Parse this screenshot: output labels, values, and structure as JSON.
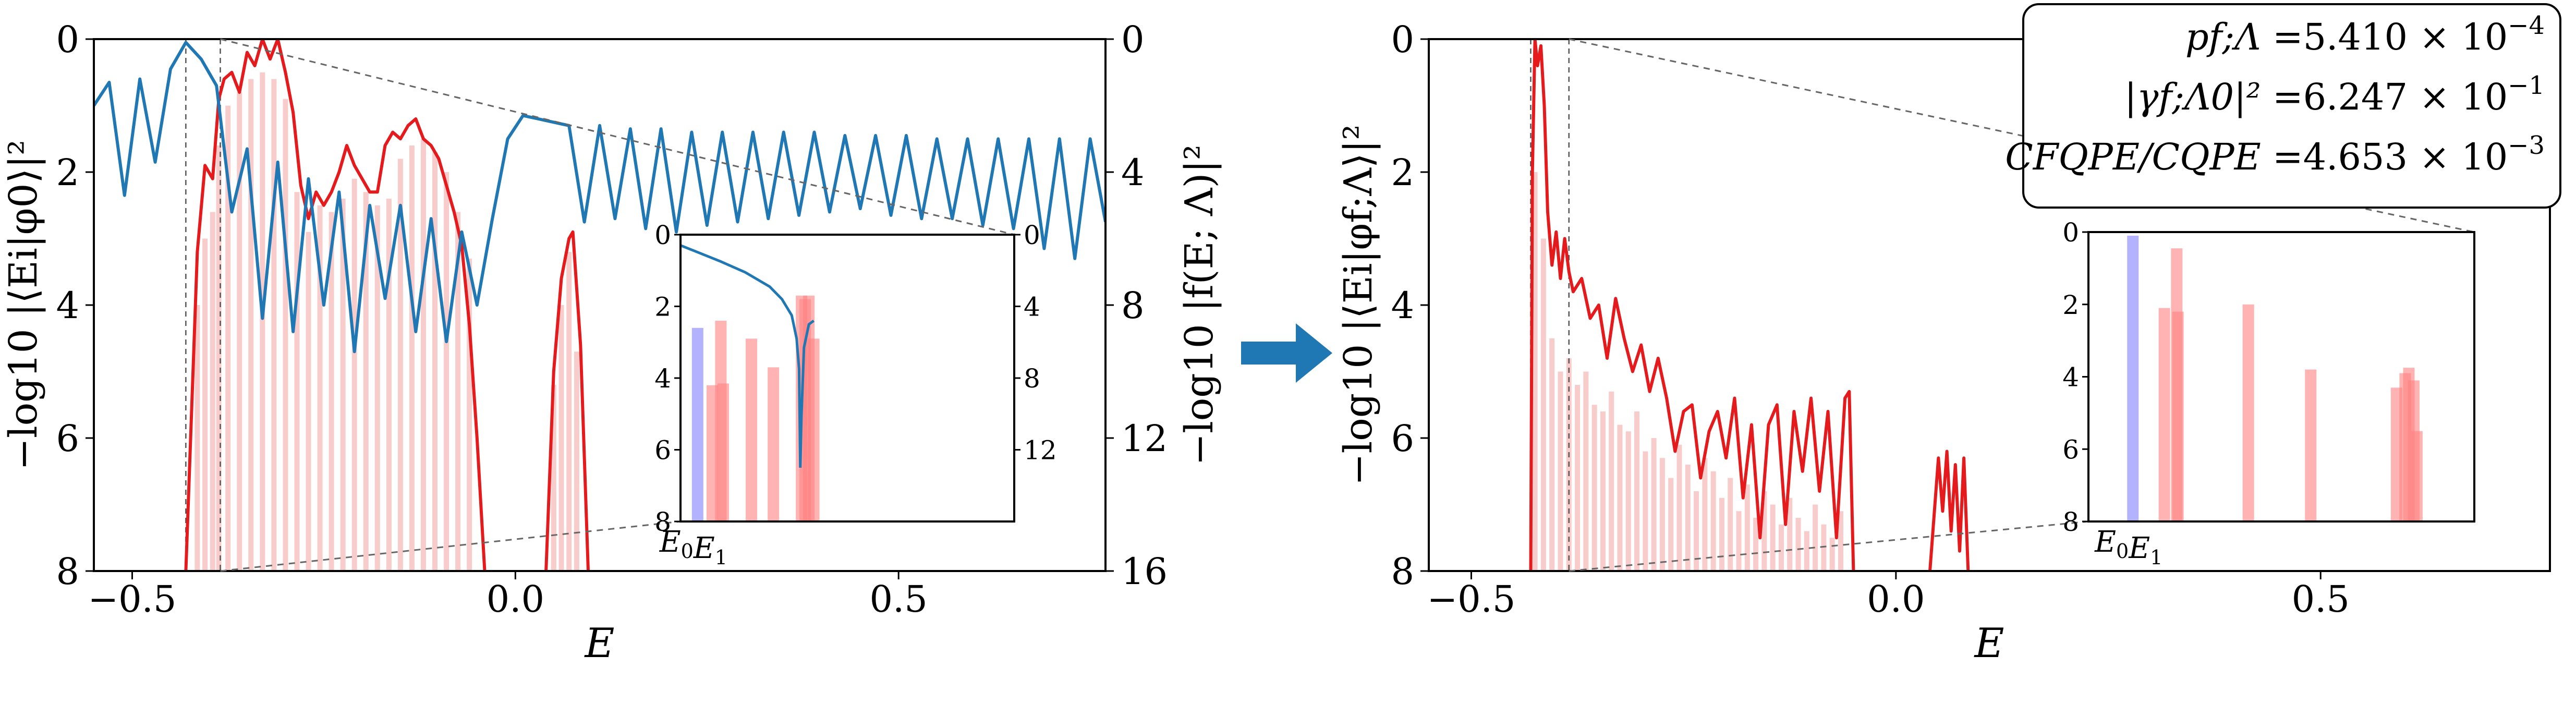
{
  "chart_data": [
    {
      "type": "line",
      "panel": "left",
      "xlabel": "E",
      "ylabel": "−log10 |⟨Ei|φ0⟩|²",
      "y2label": "−log10 |f(E; Λ)|²",
      "xlim": [
        -0.55,
        0.77
      ],
      "ylim": [
        8,
        0
      ],
      "y2lim": [
        16,
        0
      ],
      "xticks": [
        -0.5,
        0.0,
        0.5
      ],
      "xtick_labels": [
        "−0.5",
        "0.0",
        "0.5"
      ],
      "yticks": [
        0,
        2,
        4,
        6,
        8
      ],
      "ytick_labels": [
        "0",
        "2",
        "4",
        "6",
        "8"
      ],
      "y2ticks": [
        0,
        4,
        8,
        12,
        16
      ],
      "y2tick_labels": [
        "0",
        "4",
        "8",
        "12",
        "16"
      ],
      "vlines": [
        -0.43,
        -0.385
      ],
      "series": [
        {
          "color": "#e41a1c",
          "x": [
            -0.43,
            -0.415,
            -0.405,
            -0.395,
            -0.387,
            -0.38,
            -0.37,
            -0.36,
            -0.35,
            -0.34,
            -0.33,
            -0.32,
            -0.31,
            -0.3,
            -0.29,
            -0.28,
            -0.27,
            -0.26,
            -0.25,
            -0.24,
            -0.23,
            -0.22,
            -0.21,
            -0.2,
            -0.19,
            -0.18,
            -0.17,
            -0.16,
            -0.15,
            -0.14,
            -0.13,
            -0.12,
            -0.11,
            -0.1,
            -0.09,
            -0.08,
            -0.07,
            -0.06,
            -0.05,
            -0.04
          ],
          "y": [
            8.0,
            3.2,
            1.9,
            2.1,
            0.9,
            0.6,
            0.5,
            0.8,
            0.2,
            0.4,
            0.0,
            0.3,
            0.0,
            0.5,
            1.1,
            2.2,
            2.7,
            2.3,
            2.5,
            2.3,
            2.0,
            1.6,
            1.9,
            2.1,
            2.3,
            2.3,
            1.6,
            1.4,
            1.5,
            1.3,
            1.2,
            1.5,
            1.6,
            1.8,
            2.2,
            2.6,
            3.1,
            4.3,
            6.0,
            8.0
          ]
        },
        {
          "color": "#e41a1c",
          "x": [
            0.04,
            0.05,
            0.06,
            0.07,
            0.075,
            0.085,
            0.095
          ],
          "y": [
            8.0,
            5.0,
            3.6,
            3.0,
            2.9,
            4.6,
            8.0
          ]
        },
        {
          "color": "#1f77b4",
          "axis": "right",
          "x": [
            -0.55,
            -0.53,
            -0.51,
            -0.49,
            -0.47,
            -0.45,
            -0.43,
            -0.41,
            -0.39,
            -0.37,
            -0.35,
            -0.33,
            -0.31,
            -0.29,
            -0.27,
            -0.25,
            -0.23,
            -0.21,
            -0.19,
            -0.17,
            -0.15,
            -0.13,
            -0.11,
            -0.09,
            -0.07,
            -0.05,
            -0.03,
            -0.01,
            0.01,
            0.03,
            0.05,
            0.07,
            0.09,
            0.11,
            0.13,
            0.15,
            0.17,
            0.19,
            0.21,
            0.23,
            0.25,
            0.27,
            0.29,
            0.31,
            0.33,
            0.35,
            0.37,
            0.39,
            0.41,
            0.43,
            0.45,
            0.47,
            0.49,
            0.51,
            0.53,
            0.55,
            0.57,
            0.59,
            0.61,
            0.63,
            0.65,
            0.67,
            0.69,
            0.71,
            0.73,
            0.75,
            0.77
          ],
          "y": [
            2.0,
            1.3,
            4.7,
            1.2,
            3.7,
            0.9,
            0.1,
            0.6,
            1.4,
            5.2,
            3.3,
            8.4,
            3.7,
            8.8,
            4.2,
            8.0,
            4.6,
            9.4,
            5.0,
            7.8,
            5.0,
            8.8,
            5.4,
            9.1,
            5.8,
            8.0,
            5.4,
            3.0,
            2.3,
            2.4,
            2.5,
            2.6,
            5.5,
            2.6,
            5.4,
            2.7,
            5.7,
            2.7,
            5.8,
            2.8,
            5.6,
            2.8,
            5.5,
            2.8,
            5.4,
            2.8,
            5.3,
            2.8,
            5.2,
            2.9,
            5.1,
            2.9,
            5.3,
            2.9,
            5.4,
            3.0,
            5.4,
            3.0,
            5.6,
            3.0,
            5.7,
            3.0,
            6.3,
            3.0,
            6.6,
            3.0,
            5.5
          ]
        }
      ],
      "stems": {
        "color": "#f4a3a3",
        "x": [
          -0.415,
          -0.405,
          -0.395,
          -0.387,
          -0.375,
          -0.36,
          -0.345,
          -0.33,
          -0.315,
          -0.3,
          -0.285,
          -0.27,
          -0.255,
          -0.24,
          -0.225,
          -0.21,
          -0.195,
          -0.18,
          -0.165,
          -0.15,
          -0.135,
          -0.12,
          -0.105,
          -0.09,
          -0.075,
          -0.06,
          0.05,
          0.06,
          0.07,
          0.08
        ],
        "y": [
          4.0,
          3.0,
          2.6,
          1.6,
          1.0,
          0.8,
          0.6,
          0.5,
          0.6,
          0.9,
          2.3,
          2.9,
          2.5,
          2.6,
          2.4,
          2.1,
          2.3,
          2.5,
          2.4,
          1.8,
          1.6,
          1.5,
          1.7,
          2.0,
          2.6,
          3.3,
          5.2,
          4.0,
          3.2,
          4.7
        ]
      },
      "inset": {
        "xticklabels": [
          "E0",
          "E1"
        ],
        "xlim": [
          -0.4365,
          -0.3
        ],
        "ylim": [
          8,
          0
        ],
        "yticks": [
          0,
          2,
          4,
          6,
          8
        ],
        "ytick_labels": [
          "0",
          "2",
          "4",
          "6",
          "8"
        ],
        "y2ticks": [
          0,
          4,
          8,
          12
        ],
        "y2tick_labels": [
          "0",
          "4",
          "8",
          "12"
        ],
        "y2lim": [
          16,
          0
        ],
        "bars": [
          {
            "x": -0.4295,
            "y": 2.6,
            "color": "#7f7fff"
          },
          {
            "x": -0.4235,
            "y": 4.2,
            "color": "#ff8080"
          },
          {
            "x": -0.42,
            "y": 2.4,
            "color": "#ff8080"
          },
          {
            "x": -0.419,
            "y": 4.15,
            "color": "#ff8080"
          },
          {
            "x": -0.4075,
            "y": 2.9,
            "color": "#ff8080"
          },
          {
            "x": -0.3985,
            "y": 3.7,
            "color": "#ff8080"
          },
          {
            "x": -0.387,
            "y": 1.7,
            "color": "#ff8080"
          },
          {
            "x": -0.3855,
            "y": 1.8,
            "color": "#ff8080"
          },
          {
            "x": -0.384,
            "y": 1.7,
            "color": "#ff8080"
          },
          {
            "x": -0.382,
            "y": 2.9,
            "color": "#ff8080"
          }
        ],
        "curve": {
          "color": "#1f77b4",
          "x": [
            -0.4365,
            -0.43,
            -0.42,
            -0.41,
            -0.4,
            -0.395,
            -0.391,
            -0.389,
            -0.388,
            -0.3875,
            -0.387,
            -0.386,
            -0.384,
            -0.382
          ],
          "y": [
            0.6,
            0.95,
            1.5,
            2.1,
            2.9,
            3.6,
            4.5,
            5.8,
            7.5,
            13.0,
            10.0,
            6.3,
            5.0,
            4.8
          ]
        }
      }
    },
    {
      "type": "line",
      "panel": "right",
      "xlabel": "E",
      "ylabel": "−log10 |⟨Ei|φf;Λ⟩|²",
      "xlim": [
        -0.55,
        0.77
      ],
      "ylim": [
        8,
        0
      ],
      "xticks": [
        -0.5,
        0.0,
        0.5
      ],
      "xtick_labels": [
        "−0.5",
        "0.0",
        "0.5"
      ],
      "yticks": [
        0,
        2,
        4,
        6,
        8
      ],
      "ytick_labels": [
        "0",
        "2",
        "4",
        "6",
        "8"
      ],
      "vlines": [
        -0.43,
        -0.385
      ],
      "series": [
        {
          "color": "#e41a1c",
          "x": [
            -0.43,
            -0.428,
            -0.425,
            -0.422,
            -0.418,
            -0.414,
            -0.41,
            -0.405,
            -0.4,
            -0.395,
            -0.39,
            -0.385,
            -0.38,
            -0.37,
            -0.36,
            -0.35,
            -0.34,
            -0.33,
            -0.32,
            -0.31,
            -0.3,
            -0.29,
            -0.28,
            -0.27,
            -0.26,
            -0.25,
            -0.24,
            -0.23,
            -0.22,
            -0.21,
            -0.2,
            -0.19,
            -0.18,
            -0.17,
            -0.16,
            -0.15,
            -0.14,
            -0.13,
            -0.12,
            -0.11,
            -0.1,
            -0.09,
            -0.08,
            -0.07,
            -0.06,
            -0.055,
            -0.05
          ],
          "y": [
            8.0,
            2.0,
            0.0,
            0.4,
            0.1,
            1.0,
            2.6,
            3.4,
            2.9,
            3.6,
            3.0,
            3.5,
            3.8,
            3.6,
            4.2,
            4.0,
            4.8,
            3.9,
            4.5,
            5.0,
            4.6,
            5.3,
            4.8,
            5.4,
            6.2,
            5.6,
            5.5,
            6.6,
            5.9,
            5.6,
            6.3,
            5.4,
            6.9,
            5.8,
            7.5,
            5.8,
            5.5,
            7.3,
            5.6,
            6.5,
            5.4,
            6.8,
            5.6,
            7.5,
            5.4,
            5.3,
            8.0
          ]
        },
        {
          "color": "#e41a1c",
          "x": [
            0.04,
            0.05,
            0.055,
            0.06,
            0.065,
            0.07,
            0.075,
            0.08,
            0.085
          ],
          "y": [
            8.0,
            6.3,
            7.1,
            6.2,
            7.4,
            6.4,
            7.7,
            6.3,
            8.0
          ]
        }
      ],
      "stems": {
        "color": "#f4a3a3",
        "x": [
          -0.425,
          -0.415,
          -0.405,
          -0.395,
          -0.385,
          -0.375,
          -0.365,
          -0.355,
          -0.345,
          -0.335,
          -0.325,
          -0.315,
          -0.305,
          -0.295,
          -0.285,
          -0.275,
          -0.265,
          -0.255,
          -0.245,
          -0.235,
          -0.225,
          -0.215,
          -0.205,
          -0.195,
          -0.185,
          -0.175,
          -0.165,
          -0.155,
          -0.145,
          -0.135,
          -0.125,
          -0.115,
          -0.105,
          -0.095,
          -0.085,
          -0.075,
          -0.065
        ],
        "y": [
          2.0,
          3.0,
          4.5,
          5.0,
          4.8,
          5.2,
          5.0,
          5.5,
          5.6,
          5.3,
          5.8,
          5.9,
          5.6,
          6.2,
          6.0,
          6.3,
          6.6,
          6.1,
          6.4,
          6.8,
          6.3,
          6.5,
          6.9,
          6.6,
          7.1,
          6.7,
          7.2,
          6.8,
          7.0,
          7.3,
          6.9,
          7.2,
          7.4,
          7.0,
          7.3,
          7.5,
          7.1
        ]
      },
      "inset": {
        "xticklabels": [
          "E0",
          "E1"
        ],
        "xlim": [
          -0.4365,
          -0.374
        ],
        "ylim": [
          8,
          0
        ],
        "yticks": [
          0,
          2,
          4,
          6,
          8
        ],
        "ytick_labels": [
          "0",
          "2",
          "4",
          "6",
          "8"
        ],
        "bars": [
          {
            "x": -0.4293,
            "y": 0.1,
            "color": "#7f7fff"
          },
          {
            "x": -0.4242,
            "y": 2.1,
            "color": "#ff8080"
          },
          {
            "x": -0.4222,
            "y": 0.45,
            "color": "#ff8080"
          },
          {
            "x": -0.422,
            "y": 2.2,
            "color": "#ff8080"
          },
          {
            "x": -0.4106,
            "y": 2.0,
            "color": "#ff8080"
          },
          {
            "x": -0.4005,
            "y": 3.8,
            "color": "#ff8080"
          },
          {
            "x": -0.3866,
            "y": 4.3,
            "color": "#ff8080"
          },
          {
            "x": -0.3852,
            "y": 3.9,
            "color": "#ff8080"
          },
          {
            "x": -0.3846,
            "y": 3.75,
            "color": "#ff8080"
          },
          {
            "x": -0.3838,
            "y": 4.1,
            "color": "#ff8080"
          },
          {
            "x": -0.3833,
            "y": 5.5,
            "color": "#ff8080"
          }
        ]
      },
      "annotation": [
        {
          "lhs": "pf;Λ",
          "value": "5.410 × 10",
          "exp": "−4"
        },
        {
          "lhs": "|γf;Λ0|²",
          "value": "6.247 × 10",
          "exp": "−1"
        },
        {
          "lhs": "CFQPE/CQPE",
          "value": "4.653 × 10",
          "exp": "−3"
        }
      ]
    }
  ],
  "colors": {
    "red": "#e41a1c",
    "blue": "#1f77b4",
    "stem": "#f4a3a3",
    "inset_red": "#ff8080",
    "inset_blue": "#7f7fff",
    "arrow": "#1f77b4"
  },
  "arrow_icon": "right-arrow-icon"
}
